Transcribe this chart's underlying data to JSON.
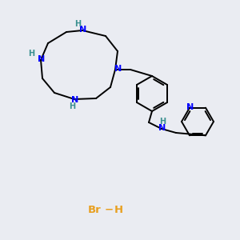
{
  "background_color": "#eaecf2",
  "bond_color": "#000000",
  "N_color": "#0000ff",
  "NH_color": "#3a9090",
  "Br_color": "#e8a020",
  "line_width": 1.4,
  "figsize": [
    3.0,
    3.0
  ],
  "dpi": 100,
  "xlim": [
    0,
    300
  ],
  "ylim": [
    0,
    300
  ]
}
